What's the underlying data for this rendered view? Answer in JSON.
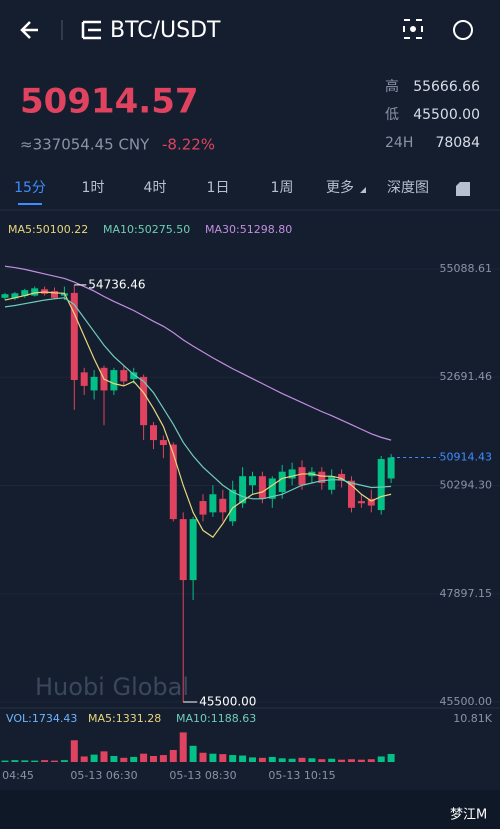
{
  "header": {
    "title": "BTC/USDT"
  },
  "price": {
    "last": "50914.57",
    "cny": "≈337054.45 CNY",
    "change": "-8.22%"
  },
  "stats": [
    {
      "label": "高",
      "value": "55666.66"
    },
    {
      "label": "低",
      "value": "45500.00"
    },
    {
      "label": "24H",
      "value": "78084"
    }
  ],
  "tabs": [
    "15分",
    "1时",
    "4时",
    "1日",
    "1周",
    "更多",
    "深度图"
  ],
  "chart": {
    "type": "candlestick",
    "ma": [
      {
        "name": "MA5:50100.22",
        "color": "#e9d67c",
        "values": [
          54400,
          54450,
          54500,
          54560,
          54580,
          54560,
          54550,
          54100,
          53600,
          53100,
          52650,
          52550,
          52500,
          52600,
          52350,
          52000,
          51600,
          51000,
          50300,
          49700,
          49300,
          49150,
          49450,
          49800,
          49950,
          50100,
          50150,
          50300,
          50450,
          50500,
          50550,
          50550,
          50500,
          50500,
          50450,
          50300,
          50100,
          49950,
          50050,
          50100.22
        ]
      },
      {
        "name": "MA10:50275.50",
        "color": "#6fcdb8",
        "values": [
          54250,
          54280,
          54320,
          54360,
          54400,
          54430,
          54450,
          54300,
          54000,
          53700,
          53400,
          53150,
          52950,
          52750,
          52600,
          52350,
          52000,
          51650,
          51250,
          50950,
          50700,
          50500,
          50300,
          50150,
          50050,
          50000,
          50000,
          50050,
          50100,
          50200,
          50300,
          50350,
          50400,
          50420,
          50420,
          50350,
          50300,
          50250,
          50260,
          50275.5
        ]
      },
      {
        "name": "MA30:51298.80",
        "color": "#c38ee0",
        "values": [
          55150,
          55120,
          55080,
          55030,
          54980,
          54930,
          54880,
          54800,
          54700,
          54600,
          54480,
          54370,
          54270,
          54170,
          54050,
          53930,
          53820,
          53680,
          53520,
          53380,
          53250,
          53120,
          53000,
          52880,
          52770,
          52660,
          52550,
          52440,
          52330,
          52230,
          52130,
          52030,
          51930,
          51840,
          51740,
          51640,
          51540,
          51440,
          51360,
          51298.8
        ]
      }
    ],
    "candles": [
      {
        "open": 54450,
        "high": 54560,
        "low": 54400,
        "close": 54530
      },
      {
        "open": 54440,
        "high": 54580,
        "low": 54400,
        "close": 54550
      },
      {
        "open": 54490,
        "high": 54650,
        "low": 54450,
        "close": 54620
      },
      {
        "open": 54500,
        "high": 54700,
        "low": 54480,
        "close": 54660
      },
      {
        "open": 54640,
        "high": 54700,
        "low": 54500,
        "close": 54540
      },
      {
        "open": 54600,
        "high": 54680,
        "low": 54420,
        "close": 54450
      },
      {
        "open": 54500,
        "high": 54700,
        "low": 54400,
        "close": 54550
      },
      {
        "open": 54560,
        "high": 54736.46,
        "low": 51970,
        "close": 52630
      },
      {
        "open": 52800,
        "high": 52900,
        "low": 52300,
        "close": 52500
      },
      {
        "open": 52400,
        "high": 52850,
        "low": 52200,
        "close": 52700
      },
      {
        "open": 52900,
        "high": 52950,
        "low": 51630,
        "close": 52400
      },
      {
        "open": 52400,
        "high": 52900,
        "low": 52300,
        "close": 52850
      },
      {
        "open": 52850,
        "high": 52950,
        "low": 52500,
        "close": 52600
      },
      {
        "open": 52650,
        "high": 52900,
        "low": 52550,
        "close": 52800
      },
      {
        "open": 52700,
        "high": 52750,
        "low": 51300,
        "close": 51630
      },
      {
        "open": 51630,
        "high": 51700,
        "low": 51100,
        "close": 51300
      },
      {
        "open": 51300,
        "high": 51400,
        "low": 50900,
        "close": 51190
      },
      {
        "open": 51200,
        "high": 51250,
        "low": 49500,
        "close": 49550
      },
      {
        "open": 49550,
        "high": 49700,
        "low": 45500,
        "close": 48200
      },
      {
        "open": 48200,
        "high": 49600,
        "low": 47760,
        "close": 49550
      },
      {
        "open": 49950,
        "high": 50100,
        "low": 49500,
        "close": 49650
      },
      {
        "open": 49700,
        "high": 50300,
        "low": 49600,
        "close": 50100
      },
      {
        "open": 50000,
        "high": 50200,
        "low": 49500,
        "close": 49700
      },
      {
        "open": 49500,
        "high": 50400,
        "low": 49400,
        "close": 50200
      },
      {
        "open": 49900,
        "high": 50700,
        "low": 49800,
        "close": 50500
      },
      {
        "open": 50300,
        "high": 50600,
        "low": 50100,
        "close": 50500
      },
      {
        "open": 50500,
        "high": 50600,
        "low": 49900,
        "close": 50000
      },
      {
        "open": 50000,
        "high": 50500,
        "low": 49800,
        "close": 50450
      },
      {
        "open": 50150,
        "high": 50750,
        "low": 50000,
        "close": 50600
      },
      {
        "open": 50450,
        "high": 50800,
        "low": 50300,
        "close": 50650
      },
      {
        "open": 50700,
        "high": 50850,
        "low": 50200,
        "close": 50300
      },
      {
        "open": 50500,
        "high": 50700,
        "low": 50350,
        "close": 50600
      },
      {
        "open": 50600,
        "high": 50700,
        "low": 50200,
        "close": 50350
      },
      {
        "open": 50200,
        "high": 50650,
        "low": 50100,
        "close": 50500
      },
      {
        "open": 50550,
        "high": 50650,
        "low": 50250,
        "close": 50400
      },
      {
        "open": 50400,
        "high": 50500,
        "low": 49700,
        "close": 49800
      },
      {
        "open": 49950,
        "high": 50100,
        "low": 49800,
        "close": 49900
      },
      {
        "open": 50000,
        "high": 50200,
        "low": 49700,
        "close": 49850
      },
      {
        "open": 49750,
        "high": 50950,
        "low": 49650,
        "close": 50880
      },
      {
        "open": 50450,
        "high": 50990,
        "low": 50350,
        "close": 50914.43
      }
    ],
    "categories": [
      null,
      "04:45",
      null,
      null,
      null,
      null,
      null,
      null,
      null,
      null,
      "05-13 06:30",
      null,
      null,
      null,
      null,
      null,
      null,
      null,
      null,
      null,
      "05-13 08:30",
      null,
      null,
      null,
      null,
      null,
      null,
      null,
      null,
      null,
      "05-13 10:15",
      null,
      null,
      null,
      null,
      null,
      null,
      null,
      null,
      null
    ],
    "ylim": [
      45500,
      55088.61
    ],
    "yticks": [
      {
        "value": 55088.61,
        "label": "55088.61"
      },
      {
        "value": 52691.46,
        "label": "52691.46"
      },
      {
        "value": 50294.3,
        "label": "50294.30"
      },
      {
        "value": 47897.15,
        "label": "47897.15"
      },
      {
        "value": 45500,
        "label": "45500.00"
      }
    ],
    "high_label": "54736.46",
    "low_label": "45500.00",
    "last_price": {
      "value": 50914.43,
      "label": "50914.43"
    },
    "up_color": "#03c087",
    "down_color": "#e0435f",
    "watermark": "Huobi Global"
  },
  "volume": {
    "legend": [
      "VOL:1734.43",
      "MA5:1331.28",
      "MA10:1188.63"
    ],
    "values": [
      300,
      400,
      350,
      300,
      400,
      300,
      400,
      4700,
      1200,
      1600,
      2300,
      1300,
      900,
      1100,
      1800,
      1300,
      1500,
      2600,
      6400,
      3500,
      2000,
      1800,
      1700,
      1500,
      1400,
      1000,
      900,
      1100,
      800,
      700,
      900,
      800,
      600,
      700,
      500,
      600,
      500,
      600,
      1200,
      1734.43
    ],
    "ylim": [
      0,
      10810
    ],
    "yticks": [
      {
        "value": 10810,
        "label": "10.81K"
      }
    ]
  },
  "footer": {
    "credit": "梦江M"
  }
}
